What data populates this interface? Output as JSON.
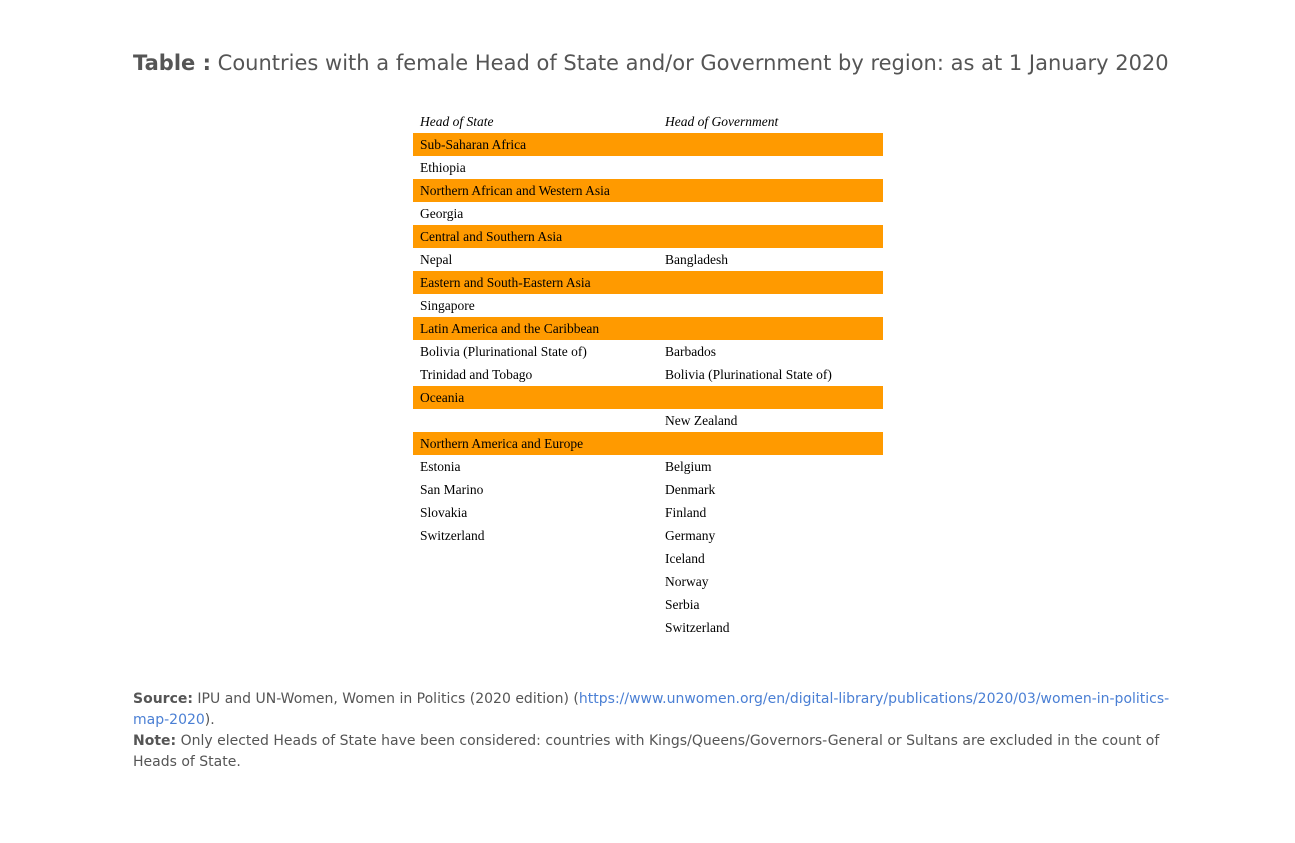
{
  "title": {
    "label": "Table :",
    "text": "Countries with a female Head of State and/or Government by region: as at 1 January 2020"
  },
  "table": {
    "headers": [
      "Head of State",
      "Head of Government"
    ],
    "rows": [
      {
        "type": "region",
        "cells": [
          "Sub-Saharan Africa",
          ""
        ]
      },
      {
        "type": "data",
        "cells": [
          "Ethiopia",
          ""
        ]
      },
      {
        "type": "region",
        "cells": [
          "Northern African and Western Asia",
          ""
        ]
      },
      {
        "type": "data",
        "cells": [
          "Georgia",
          ""
        ]
      },
      {
        "type": "region",
        "cells": [
          "Central and Southern Asia",
          ""
        ]
      },
      {
        "type": "data",
        "cells": [
          "Nepal",
          "Bangladesh"
        ]
      },
      {
        "type": "region",
        "cells": [
          "Eastern and South-Eastern Asia",
          ""
        ]
      },
      {
        "type": "data",
        "cells": [
          "Singapore",
          ""
        ]
      },
      {
        "type": "region",
        "cells": [
          "Latin America and the Caribbean",
          ""
        ]
      },
      {
        "type": "data",
        "cells": [
          "Bolivia (Plurinational State of)",
          "Barbados"
        ]
      },
      {
        "type": "data",
        "cells": [
          "Trinidad and Tobago",
          "Bolivia (Plurinational State of)"
        ]
      },
      {
        "type": "region",
        "cells": [
          "Oceania",
          ""
        ]
      },
      {
        "type": "data",
        "cells": [
          "",
          "New Zealand"
        ]
      },
      {
        "type": "region",
        "cells": [
          "Northern America and Europe",
          ""
        ]
      },
      {
        "type": "data",
        "cells": [
          "Estonia",
          "Belgium"
        ]
      },
      {
        "type": "data",
        "cells": [
          "San Marino",
          "Denmark"
        ]
      },
      {
        "type": "data",
        "cells": [
          "Slovakia",
          "Finland"
        ]
      },
      {
        "type": "data",
        "cells": [
          "Switzerland",
          "Germany"
        ]
      },
      {
        "type": "data",
        "cells": [
          "",
          "Iceland"
        ]
      },
      {
        "type": "data",
        "cells": [
          "",
          "Norway"
        ]
      },
      {
        "type": "data",
        "cells": [
          "",
          "Serbia"
        ]
      },
      {
        "type": "data",
        "cells": [
          "",
          "Switzerland"
        ]
      }
    ]
  },
  "source": {
    "label": "Source:",
    "text_before": " IPU and UN-Women, Women in Politics (2020 edition) (",
    "link": "https://www.unwomen.org/en/digital-library/publications/2020/03/women-in-politics-map-2020",
    "text_after": ")."
  },
  "note": {
    "label": "Note:",
    "text": " Only elected Heads of State have been considered: countries with Kings/Queens/Governors-General or Sultans are excluded in the count of Heads of State."
  },
  "colors": {
    "region_band": "#ff9a00",
    "link": "#4a7fd4",
    "text": "#555555"
  }
}
